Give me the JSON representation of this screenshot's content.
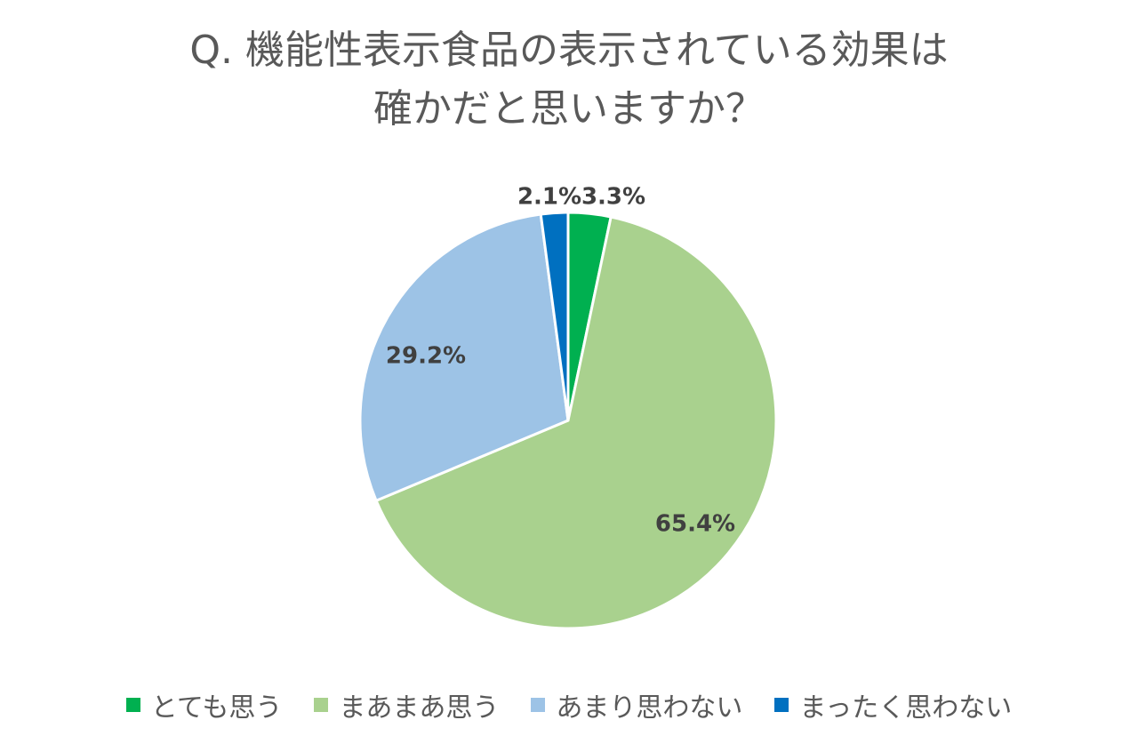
{
  "chart_data": {
    "type": "pie",
    "title_lines": [
      "Q. 機能性表示食品の表示されている効果は",
      "確かだと思いますか？"
    ],
    "slices": [
      {
        "name": "とても思う",
        "value": 3.3,
        "label": "3.3%",
        "color": "#00B050"
      },
      {
        "name": "まあまあ思う",
        "value": 65.4,
        "label": "65.4%",
        "color": "#A9D18E"
      },
      {
        "name": "あまり思わない",
        "value": 29.2,
        "label": "29.2%",
        "color": "#9DC3E6"
      },
      {
        "name": "まったく思わない",
        "value": 2.1,
        "label": "2.1%",
        "color": "#0070C0"
      }
    ],
    "legend_position": "bottom",
    "start_angle": "12 o'clock",
    "direction": "clockwise"
  }
}
